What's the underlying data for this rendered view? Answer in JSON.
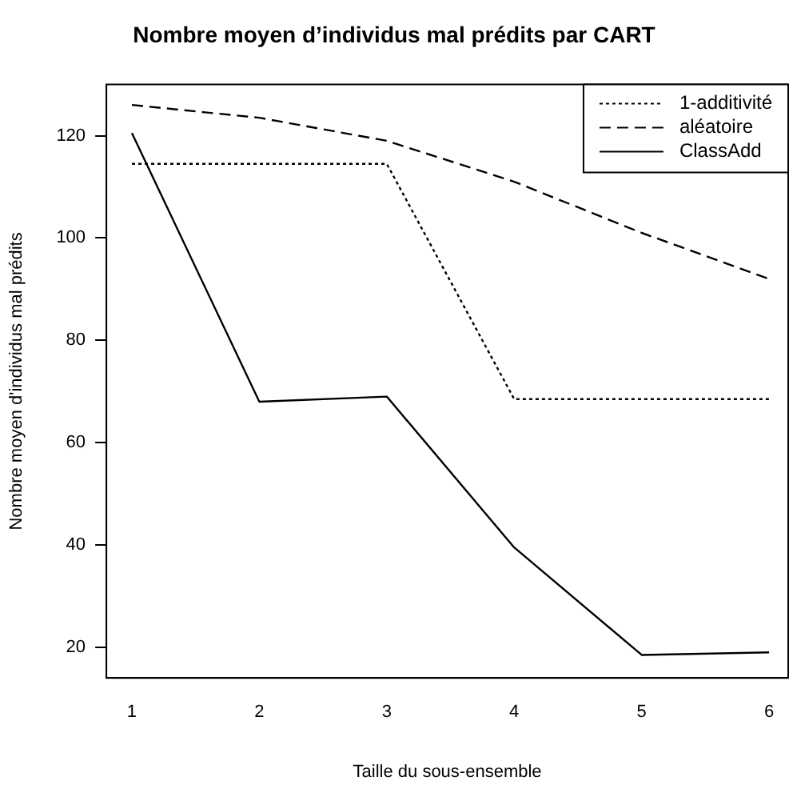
{
  "chart_data": {
    "type": "line",
    "title": "Nombre moyen d’individus mal prédits par CART",
    "xlabel": "Taille du sous-ensemble",
    "ylabel": "Nombre moyen d'individus mal prédits",
    "x": [
      1,
      2,
      3,
      4,
      5,
      6
    ],
    "series": [
      {
        "name": "1-additivité",
        "color": "#000000",
        "line_style": "dotted",
        "values": [
          114.5,
          114.5,
          114.5,
          68.5,
          68.5,
          68.5
        ]
      },
      {
        "name": "aléatoire",
        "color": "#000000",
        "line_style": "dashed",
        "values": [
          126,
          123.5,
          119,
          111,
          101,
          92
        ]
      },
      {
        "name": "ClassAdd",
        "color": "#000000",
        "line_style": "solid",
        "values": [
          120.5,
          68,
          69,
          39.5,
          18.5,
          19
        ]
      }
    ],
    "xlim": [
      0.8,
      6.15
    ],
    "xticks": [
      1,
      2,
      3,
      4,
      5,
      6
    ],
    "ylim": [
      14,
      130
    ],
    "yticks": [
      20,
      40,
      60,
      80,
      100,
      120
    ],
    "grid": false,
    "legend": "top right",
    "marker": "none"
  }
}
